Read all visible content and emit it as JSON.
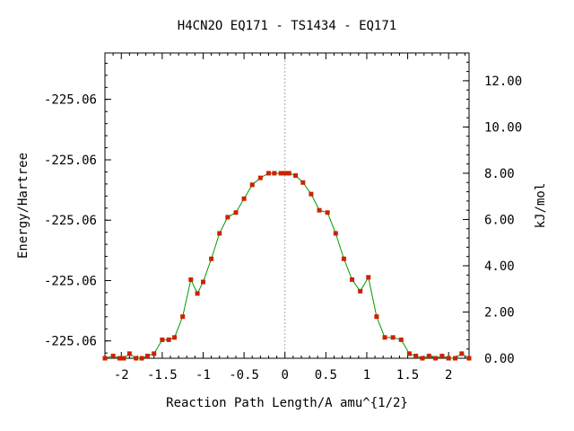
{
  "chart_data": {
    "type": "line",
    "title": "H4CN2O   EQ171 - TS1434 - EQ171",
    "xlabel": "Reaction Path Length/A amu^{1/2}",
    "ylabel_left": "Energy/Hartree",
    "ylabel_right": "kJ/mol",
    "xlim": [
      -2.2,
      2.25
    ],
    "ylim_right": [
      0,
      13.2
    ],
    "x_ticks": [
      -2,
      -1.5,
      -1,
      -0.5,
      0,
      0.5,
      1,
      1.5,
      2
    ],
    "x_tick_labels": [
      "-2",
      "-1.5",
      "-1",
      "-0.5",
      "0",
      "0.5",
      "1",
      "1.5",
      "2"
    ],
    "right_ticks": [
      0,
      2,
      4,
      6,
      8,
      10,
      12
    ],
    "right_tick_labels": [
      "0.00",
      "2.00",
      "4.00",
      "6.00",
      "8.00",
      "10.00",
      "12.00"
    ],
    "left_tick_positions": [
      0.75,
      3.36,
      5.97,
      8.58,
      11.2
    ],
    "left_tick_labels": [
      "-225.06",
      "-225.06",
      "-225.06",
      "-225.06",
      "-225.06"
    ],
    "center_line_x": 0,
    "grid": false,
    "series": [
      {
        "color": "#009900",
        "marker_color": "#cc2200",
        "points": [
          [
            -2.2,
            0.0
          ],
          [
            -2.1,
            0.1
          ],
          [
            -2.02,
            0.0
          ],
          [
            -1.97,
            0.0
          ],
          [
            -1.9,
            0.2
          ],
          [
            -1.82,
            0.0
          ],
          [
            -1.75,
            0.0
          ],
          [
            -1.68,
            0.1
          ],
          [
            -1.6,
            0.2
          ],
          [
            -1.5,
            0.8
          ],
          [
            -1.42,
            0.8
          ],
          [
            -1.35,
            0.9
          ],
          [
            -1.25,
            1.8
          ],
          [
            -1.15,
            3.4
          ],
          [
            -1.07,
            2.8
          ],
          [
            -1.0,
            3.3
          ],
          [
            -0.9,
            4.3
          ],
          [
            -0.8,
            5.4
          ],
          [
            -0.7,
            6.1
          ],
          [
            -0.6,
            6.3
          ],
          [
            -0.5,
            6.9
          ],
          [
            -0.4,
            7.5
          ],
          [
            -0.3,
            7.8
          ],
          [
            -0.2,
            8.0
          ],
          [
            -0.13,
            8.0
          ],
          [
            -0.05,
            8.0
          ],
          [
            0.0,
            8.0
          ],
          [
            0.05,
            8.0
          ],
          [
            0.13,
            7.9
          ],
          [
            0.22,
            7.6
          ],
          [
            0.32,
            7.1
          ],
          [
            0.42,
            6.4
          ],
          [
            0.52,
            6.3
          ],
          [
            0.62,
            5.4
          ],
          [
            0.72,
            4.3
          ],
          [
            0.82,
            3.4
          ],
          [
            0.92,
            2.9
          ],
          [
            1.02,
            3.5
          ],
          [
            1.12,
            1.8
          ],
          [
            1.22,
            0.9
          ],
          [
            1.32,
            0.9
          ],
          [
            1.42,
            0.8
          ],
          [
            1.52,
            0.2
          ],
          [
            1.6,
            0.1
          ],
          [
            1.68,
            0.0
          ],
          [
            1.76,
            0.1
          ],
          [
            1.84,
            0.0
          ],
          [
            1.92,
            0.1
          ],
          [
            2.0,
            0.0
          ],
          [
            2.08,
            0.0
          ],
          [
            2.16,
            0.2
          ],
          [
            2.25,
            0.0
          ]
        ]
      }
    ]
  }
}
